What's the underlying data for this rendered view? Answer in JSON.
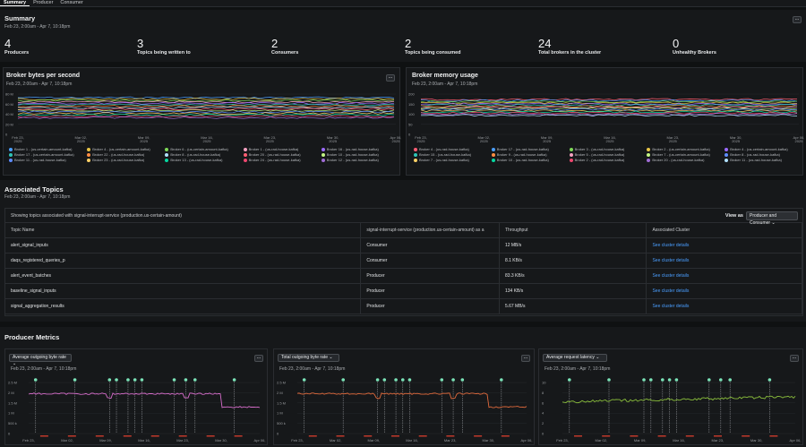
{
  "tabs": [
    "Summary",
    "Producer",
    "Consumer"
  ],
  "summary": {
    "title": "Summary",
    "daterange": "Feb 23, 2:00am - Apr 7, 10:18pm",
    "more": "...",
    "stats": [
      {
        "value": "4",
        "label": "Producers"
      },
      {
        "value": "3",
        "label": "Topics being written to"
      },
      {
        "value": "2",
        "label": "Consumers"
      },
      {
        "value": "2",
        "label": "Topics being consumed"
      },
      {
        "value": "24",
        "label": "Total brokers in the cluster"
      },
      {
        "value": "0",
        "label": "Unhealthy Brokers"
      }
    ]
  },
  "broker_bytes": {
    "title": "Broker bytes per second",
    "daterange": "Feb 23, 2:00am - Apr 7, 10:18pm",
    "yticks": [
      "80 M",
      "60 M",
      "40 M",
      "20 M",
      "0"
    ],
    "xticks": [
      {
        "d": "Feb 23,",
        "y": "2025"
      },
      {
        "d": "Mar 02,",
        "y": "2025"
      },
      {
        "d": "Mar 09,",
        "y": "2025"
      },
      {
        "d": "Mar 16,",
        "y": "2025"
      },
      {
        "d": "Mar 23,",
        "y": "2025"
      },
      {
        "d": "Mar 30,",
        "y": "2025"
      },
      {
        "d": "Apr 06,",
        "y": "2025"
      }
    ],
    "legend": [
      {
        "label": "Broker 1 - (us-certain-amount-kafka)",
        "color": "#4a9eff"
      },
      {
        "label": "Broker 4 - (us-certain-amount-kafka)",
        "color": "#e8c547"
      },
      {
        "label": "Broker 6 - (us-certain-amount-kafka)",
        "color": "#7ed957"
      },
      {
        "label": "Broker 1 - (us-rad-house-kafka)",
        "color": "#f4a0c0"
      },
      {
        "label": "Broker 16 - (us-rad-house-kafka)",
        "color": "#9b6bff"
      },
      {
        "label": "Broker 17 - (us-certain-amount-kafka)",
        "color": "#2ec4b6"
      },
      {
        "label": "Broker 22 - (us-rad-house-kafka)",
        "color": "#ff8c42"
      },
      {
        "label": "Broker 8 - (us-rad-house-kafka)",
        "color": "#b0e0ff"
      },
      {
        "label": "Broker 20 - (us-rad-house-kafka)",
        "color": "#ff5d73"
      },
      {
        "label": "Broker 10 - (us-rad-house-kafka)",
        "color": "#c3f584"
      },
      {
        "label": "Broker 11 - (us-rad-house-kafka)",
        "color": "#5e8cff"
      },
      {
        "label": "Broker 23 - (us-rad-house-kafka)",
        "color": "#ffd166"
      },
      {
        "label": "Broker 13 - (us-rad-house-kafka)",
        "color": "#06d6a0"
      },
      {
        "label": "Broker 24 - (us-rad-house-kafka)",
        "color": "#ef476f"
      },
      {
        "label": "Broker 12 - (us-rad-house-kafka)",
        "color": "#a06cd5"
      }
    ]
  },
  "broker_memory": {
    "title": "Broker memory usage",
    "daterange": "Feb 23, 2:00am - Apr 7, 10:18pm",
    "yticks": [
      "200",
      "150",
      "100",
      "50",
      "0"
    ],
    "xticks": [
      {
        "d": "Feb 23,",
        "y": "2025"
      },
      {
        "d": "Mar 02,",
        "y": "2025"
      },
      {
        "d": "Mar 09,",
        "y": "2025"
      },
      {
        "d": "Mar 16,",
        "y": "2025"
      },
      {
        "d": "Mar 23,",
        "y": "2025"
      },
      {
        "d": "Mar 30,",
        "y": "2025"
      },
      {
        "d": "Apr 06,",
        "y": "2025"
      }
    ],
    "legend": [
      {
        "label": "Broker 4 - (us-rad-house-kafka)",
        "color": "#ff5d73"
      },
      {
        "label": "Broker 17 - (us-rad-house-kafka)",
        "color": "#4a9eff"
      },
      {
        "label": "Broker 3 - (us-rad-house-kafka)",
        "color": "#7ed957"
      },
      {
        "label": "Broker 2 - (us-certain-amount-kafka)",
        "color": "#e8c547"
      },
      {
        "label": "Broker 4 - (us-certain-amount-kafka)",
        "color": "#9b6bff"
      },
      {
        "label": "Broker 15 - (us-rad-house-kafka)",
        "color": "#2ec4b6"
      },
      {
        "label": "Broker 9 - (us-rad-house-kafka)",
        "color": "#ff8c42"
      },
      {
        "label": "Broker 5 - (us-rad-house-kafka)",
        "color": "#f4a0c0"
      },
      {
        "label": "Broker 7 - (us-certain-amount-kafka)",
        "color": "#c3f584"
      },
      {
        "label": "Broker 8 - (us-rad-house-kafka)",
        "color": "#5e8cff"
      },
      {
        "label": "Broker 7 - (us-rad-house-kafka)",
        "color": "#ffd166"
      },
      {
        "label": "Broker 10 - (us-rad-house-kafka)",
        "color": "#06d6a0"
      },
      {
        "label": "Broker 2 - (us-rad-house-kafka)",
        "color": "#ef476f"
      },
      {
        "label": "Broker 20 - (us-rad-house-kafka)",
        "color": "#a06cd5"
      },
      {
        "label": "Broker 11 - (us-rad-house-kafka)",
        "color": "#b0e0ff"
      }
    ]
  },
  "topics": {
    "title": "Associated Topics",
    "daterange": "Feb 23, 2:00am - Apr 7, 10:18pm",
    "message": "Showing topics associated with signal-interrupt-service (production.us-certain-amount)",
    "view_as_label": "View as",
    "view_as_value": "Producer and Consumer",
    "columns": [
      "Topic Name",
      "signal-interrupt-service (production.us-certain-amount) as a",
      "Throughput",
      "Associated Cluster"
    ],
    "rows": [
      [
        "alert_signal_inputs",
        "Consumer",
        "12 MB/s",
        "See cluster details"
      ],
      [
        "daqs_registered_queries_p",
        "Consumer",
        "8.1 KB/s",
        "See cluster details"
      ],
      [
        "alert_event_batches",
        "Producer",
        "83.3 KB/s",
        "See cluster details"
      ],
      [
        "baseline_signal_inputs",
        "Producer",
        "134 KB/s",
        "See cluster details"
      ],
      [
        "signal_aggregation_results",
        "Producer",
        "5.67 MB/s",
        "See cluster details"
      ]
    ]
  },
  "producer_metrics": {
    "title": "Producer Metrics",
    "panels": [
      {
        "select": "Average outgoing byte rate",
        "daterange": "Feb 23, 2:00am - Apr 7, 10:18pm",
        "color": "#d86ecc",
        "yticks": [
          "2.5 M",
          "2 M",
          "1.5 M",
          "1 M",
          "500 k",
          "0"
        ],
        "xticks": [
          "Feb 23,",
          "Mar 02,",
          "Mar 09,",
          "Mar 16,",
          "Mar 23,",
          "Mar 30,",
          "Apr 06,"
        ]
      },
      {
        "select": "Total outgoing byte rate",
        "daterange": "Feb 23, 2:00am - Apr 7, 10:18pm",
        "color": "#e06a3c",
        "yticks": [
          "2.5 M",
          "2 M",
          "1.5 M",
          "1 M",
          "500 k",
          "0"
        ],
        "xticks": [
          "Feb 23,",
          "Mar 02,",
          "Mar 09,",
          "Mar 16,",
          "Mar 23,",
          "Mar 30,",
          "Apr 06,"
        ]
      },
      {
        "select": "Average request latency",
        "daterange": "Feb 23, 2:00am - Apr 7, 10:18pm",
        "color": "#8bbf3c",
        "yticks": [
          "10",
          "8",
          "6",
          "4",
          "2",
          "0"
        ],
        "xticks": [
          "Feb 23,",
          "Mar 02,",
          "Mar 09,",
          "Mar 16,",
          "Mar 23,",
          "Mar 30,",
          "Apr 06,"
        ]
      }
    ]
  }
}
